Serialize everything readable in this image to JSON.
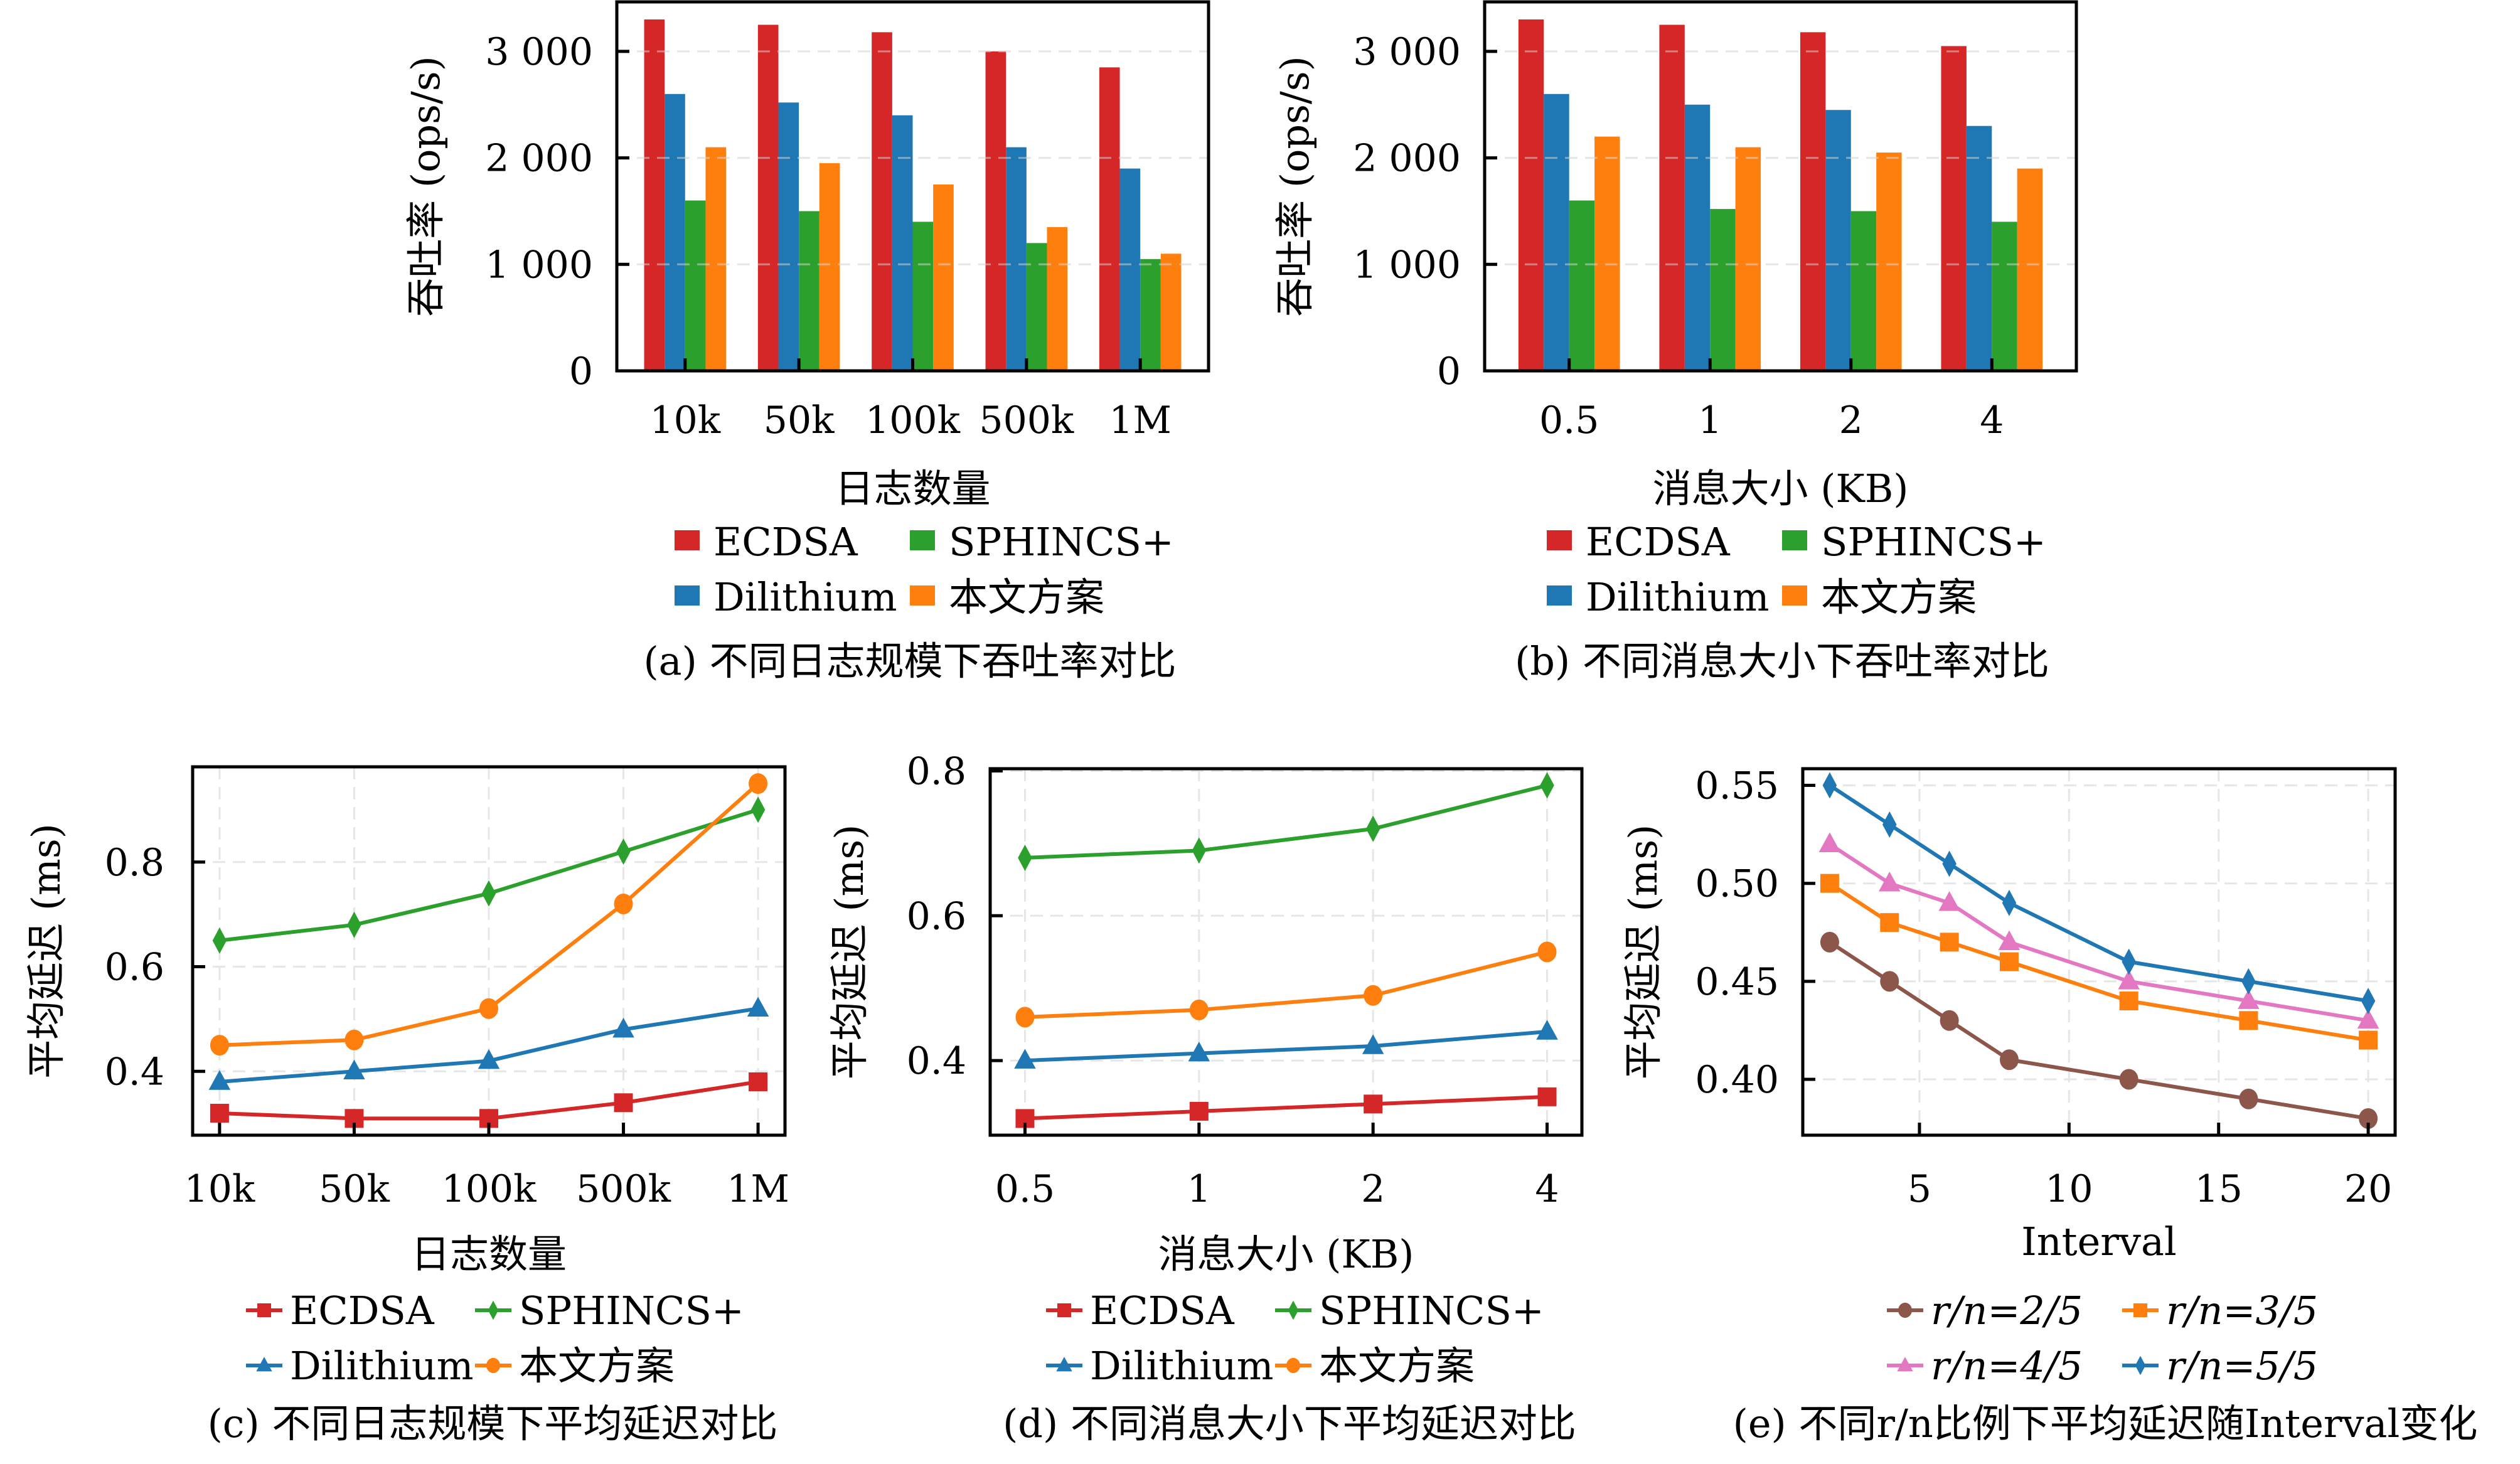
{
  "figure": {
    "colors": {
      "ECDSA": "#d62728",
      "Dilithium": "#1f77b4",
      "SPHINCS+": "#2ca02c",
      "本文方案": "#ff7f0e",
      "r/n=2/5": "#8c564b",
      "r/n=3/5": "#ff7f0e",
      "r/n=4/5": "#e377c2",
      "r/n=5/5": "#1f77b4"
    }
  },
  "chart_data": [
    {
      "id": "a",
      "type": "bar",
      "title": "",
      "caption": "(a) 不同日志规模下吞吐率对比",
      "xlabel": "日志数量",
      "ylabel": "吞吐率 (ops/s)",
      "categories": [
        "10k",
        "50k",
        "100k",
        "500k",
        "1M"
      ],
      "series": [
        {
          "name": "ECDSA",
          "values": [
            3300,
            3250,
            3180,
            3000,
            2850
          ]
        },
        {
          "name": "Dilithium",
          "values": [
            2600,
            2520,
            2400,
            2100,
            1900
          ]
        },
        {
          "name": "SPHINCS+",
          "values": [
            1600,
            1500,
            1400,
            1200,
            1050
          ]
        },
        {
          "name": "本文方案",
          "values": [
            2100,
            1950,
            1750,
            1350,
            1100
          ]
        }
      ],
      "yticks": [
        0,
        1000,
        2000,
        3000
      ],
      "ytick_labels": [
        "0",
        "1 000",
        "2 000",
        "3 000"
      ],
      "ylim": [
        0,
        3465
      ],
      "grid": "y-dashed",
      "legend": {
        "placement": "below",
        "columns": 2,
        "order": [
          "ECDSA",
          "SPHINCS+",
          "Dilithium",
          "本文方案"
        ]
      }
    },
    {
      "id": "b",
      "type": "bar",
      "title": "",
      "caption": "(b) 不同消息大小下吞吐率对比",
      "xlabel": "消息大小 (KB)",
      "ylabel": "吞吐率 (ops/s)",
      "categories": [
        "0.5",
        "1",
        "2",
        "4"
      ],
      "series": [
        {
          "name": "ECDSA",
          "values": [
            3300,
            3250,
            3180,
            3050
          ]
        },
        {
          "name": "Dilithium",
          "values": [
            2600,
            2500,
            2450,
            2300
          ]
        },
        {
          "name": "SPHINCS+",
          "values": [
            1600,
            1520,
            1500,
            1400
          ]
        },
        {
          "name": "本文方案",
          "values": [
            2200,
            2100,
            2050,
            1900
          ]
        }
      ],
      "yticks": [
        0,
        1000,
        2000,
        3000
      ],
      "ytick_labels": [
        "0",
        "1 000",
        "2 000",
        "3 000"
      ],
      "ylim": [
        0,
        3465
      ],
      "grid": "y-dashed",
      "legend": {
        "placement": "below",
        "columns": 2,
        "order": [
          "ECDSA",
          "SPHINCS+",
          "Dilithium",
          "本文方案"
        ]
      }
    },
    {
      "id": "c",
      "type": "line",
      "title": "",
      "caption": "(c) 不同日志规模下平均延迟对比",
      "xlabel": "日志数量",
      "ylabel": "平均延迟 (ms)",
      "categories": [
        "10k",
        "50k",
        "100k",
        "500k",
        "1M"
      ],
      "series": [
        {
          "name": "ECDSA",
          "marker": "square",
          "values": [
            0.32,
            0.31,
            0.31,
            0.34,
            0.38
          ]
        },
        {
          "name": "Dilithium",
          "marker": "triangle",
          "values": [
            0.38,
            0.4,
            0.42,
            0.48,
            0.52
          ]
        },
        {
          "name": "SPHINCS+",
          "marker": "diamond",
          "values": [
            0.65,
            0.68,
            0.74,
            0.82,
            0.9
          ]
        },
        {
          "name": "本文方案",
          "marker": "circle",
          "values": [
            0.45,
            0.46,
            0.52,
            0.72,
            0.95
          ]
        }
      ],
      "yticks": [
        0.4,
        0.6,
        0.8
      ],
      "ytick_labels": [
        "0.4",
        "0.6",
        "0.8"
      ],
      "ylim": [
        0.278,
        0.982
      ],
      "grid": "both-dashed",
      "legend": {
        "placement": "below",
        "columns": 2,
        "order": [
          "ECDSA",
          "SPHINCS+",
          "Dilithium",
          "本文方案"
        ]
      }
    },
    {
      "id": "d",
      "type": "line",
      "title": "",
      "caption": "(d) 不同消息大小下平均延迟对比",
      "xlabel": "消息大小 (KB)",
      "ylabel": "平均延迟 (ms)",
      "categories": [
        "0.5",
        "1",
        "2",
        "4"
      ],
      "series": [
        {
          "name": "ECDSA",
          "marker": "square",
          "values": [
            0.32,
            0.33,
            0.34,
            0.35
          ]
        },
        {
          "name": "Dilithium",
          "marker": "triangle",
          "values": [
            0.4,
            0.41,
            0.42,
            0.44
          ]
        },
        {
          "name": "SPHINCS+",
          "marker": "diamond",
          "values": [
            0.68,
            0.69,
            0.72,
            0.78
          ]
        },
        {
          "name": "本文方案",
          "marker": "circle",
          "values": [
            0.46,
            0.47,
            0.49,
            0.55
          ]
        }
      ],
      "yticks": [
        0.4,
        0.6,
        0.8
      ],
      "ytick_labels": [
        "0.4",
        "0.6",
        "0.8"
      ],
      "ylim": [
        0.297,
        0.803
      ],
      "grid": "both-dashed",
      "legend": {
        "placement": "below",
        "columns": 2,
        "order": [
          "ECDSA",
          "SPHINCS+",
          "Dilithium",
          "本文方案"
        ]
      }
    },
    {
      "id": "e",
      "type": "line",
      "title": "",
      "caption": "(e) 不同r/n比例下平均延迟随Interval变化",
      "xlabel": "Interval",
      "ylabel": "平均延迟 (ms)",
      "x": [
        2,
        4,
        6,
        8,
        12,
        16,
        20
      ],
      "series": [
        {
          "name": "r/n=2/5",
          "marker": "circle",
          "values": [
            0.47,
            0.45,
            0.43,
            0.41,
            0.4,
            0.39,
            0.38
          ]
        },
        {
          "name": "r/n=3/5",
          "marker": "square",
          "values": [
            0.5,
            0.48,
            0.47,
            0.46,
            0.44,
            0.43,
            0.42
          ]
        },
        {
          "name": "r/n=4/5",
          "marker": "triangle",
          "values": [
            0.52,
            0.5,
            0.49,
            0.47,
            0.45,
            0.44,
            0.43
          ]
        },
        {
          "name": "r/n=5/5",
          "marker": "diamond",
          "values": [
            0.55,
            0.53,
            0.51,
            0.49,
            0.46,
            0.45,
            0.44
          ]
        }
      ],
      "xticks": [
        5,
        10,
        15,
        20
      ],
      "xtick_labels": [
        "5",
        "10",
        "15",
        "20"
      ],
      "xlim": [
        1.1,
        20.9
      ],
      "yticks": [
        0.4,
        0.45,
        0.5,
        0.55
      ],
      "ytick_labels": [
        "0.40",
        "0.45",
        "0.50",
        "0.55"
      ],
      "ylim": [
        0.3715,
        0.5585
      ],
      "grid": "both-dashed",
      "legend": {
        "placement": "below",
        "columns": 2,
        "order": [
          "r/n=2/5",
          "r/n=3/5",
          "r/n=4/5",
          "r/n=5/5"
        ]
      }
    }
  ]
}
